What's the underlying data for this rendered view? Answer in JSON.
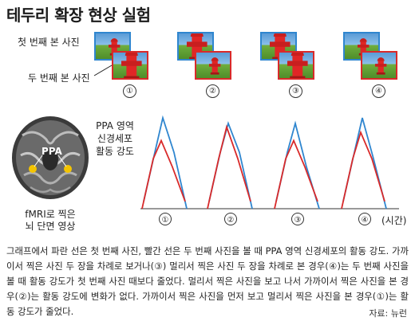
{
  "title": "테두리 확장 현상 실험",
  "labels": {
    "first_photo": "첫 번째 본 사진",
    "second_photo": "두 번째 본 사진"
  },
  "conditions": [
    "①",
    "②",
    "③",
    "④"
  ],
  "brain": {
    "region_label": "PPA",
    "caption_line1": "fMRI로 찍은",
    "caption_line2": "뇌 단면 영상"
  },
  "graph": {
    "ylabel_line1": "PPA 영역",
    "ylabel_line2": "신경세포",
    "ylabel_line3": "활동 강도",
    "xlabel": "(시간)"
  },
  "chart_data": {
    "type": "line",
    "x_labels": [
      "①",
      "②",
      "③",
      "④"
    ],
    "series": [
      {
        "color": "#2f86cf",
        "values": [
          [
            0.08,
            0.62,
            1.0,
            0.62,
            0.0
          ],
          [
            0.08,
            0.62,
            0.94,
            0.62,
            0.0
          ],
          [
            0.08,
            0.62,
            0.94,
            0.46,
            0.0
          ],
          [
            0.08,
            0.62,
            1.0,
            0.55,
            0.0
          ]
        ]
      },
      {
        "color": "#d92a2a",
        "values": [
          [
            0.0,
            0.55,
            0.75,
            0.46,
            0.08
          ],
          [
            0.0,
            0.55,
            0.9,
            0.55,
            0.08
          ],
          [
            0.0,
            0.55,
            0.75,
            0.46,
            0.08
          ],
          [
            0.0,
            0.55,
            0.84,
            0.55,
            0.08
          ]
        ]
      }
    ]
  },
  "description": "그래프에서 파란 선은 첫 번째 사진, 빨간 선은 두 번째 사진을 볼 때 PPA 영역 신경세포의 활동 강도. 가까이서 찍은 사진 두 장을 차례로 보거나(③) 멀리서 찍은 사진 두 장을 차례로 본 경우(④)는 두 번째 사진을 볼 때 활동 강도가 첫 번째 사진 때보다 줄었다. 멀리서 찍은 사진을 보고 나서 가까이서 찍은 사진을 본 경우(②)는 활동 강도에 변화가 없다. 가까이서 찍은 사진을 먼저 보고 멀리서 찍은 사진을 본 경우(①)는 활동 강도가 줄었다.",
  "source": "자료: 뉴런",
  "colors": {
    "first": "#2f86cf",
    "second": "#d92a2a"
  }
}
